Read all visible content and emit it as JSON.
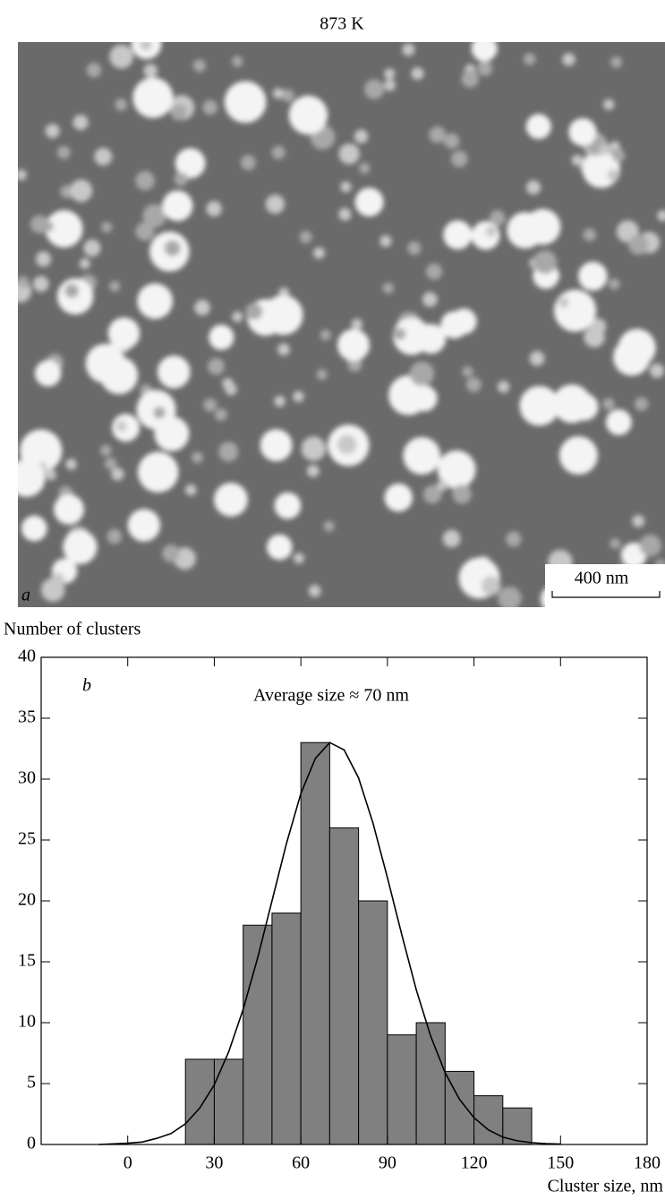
{
  "chart_data": {
    "type": "histogram",
    "title": "873 K",
    "image_label": "a",
    "scale_bar": "400 nm",
    "panel_label": "b",
    "annotation": "Average size ≈ 70 nm",
    "y_label": "Number of clusters",
    "x_label": "Cluster size, nm",
    "bins": [
      20,
      30,
      40,
      50,
      60,
      70,
      80,
      90,
      100,
      110,
      120,
      130,
      140
    ],
    "values": [
      7,
      7,
      18,
      19,
      33,
      26,
      20,
      9,
      10,
      6,
      4,
      3
    ],
    "color": "#808080",
    "fit_curve": {
      "x": [
        -10,
        -5,
        0,
        5,
        10,
        15,
        20,
        25,
        30,
        35,
        40,
        45,
        50,
        55,
        60,
        65,
        70,
        75,
        80,
        85,
        90,
        95,
        100,
        105,
        110,
        115,
        120,
        125,
        130,
        135,
        140,
        145,
        150
      ],
      "y": [
        0,
        0.05,
        0.1,
        0.2,
        0.5,
        0.9,
        1.7,
        3,
        4.9,
        7.6,
        11.1,
        15.3,
        20,
        24.7,
        28.8,
        31.7,
        33,
        32.4,
        30.1,
        26.4,
        21.9,
        17.2,
        12.7,
        8.9,
        5.9,
        3.7,
        2.2,
        1.2,
        0.6,
        0.3,
        0.15,
        0.07,
        0.03
      ]
    },
    "xlim": [
      -30,
      180
    ],
    "xticks": [
      0,
      30,
      60,
      90,
      120,
      150,
      180
    ],
    "ylim": [
      0,
      40
    ],
    "yticks": [
      0,
      5,
      10,
      15,
      20,
      25,
      30,
      35,
      40
    ]
  }
}
